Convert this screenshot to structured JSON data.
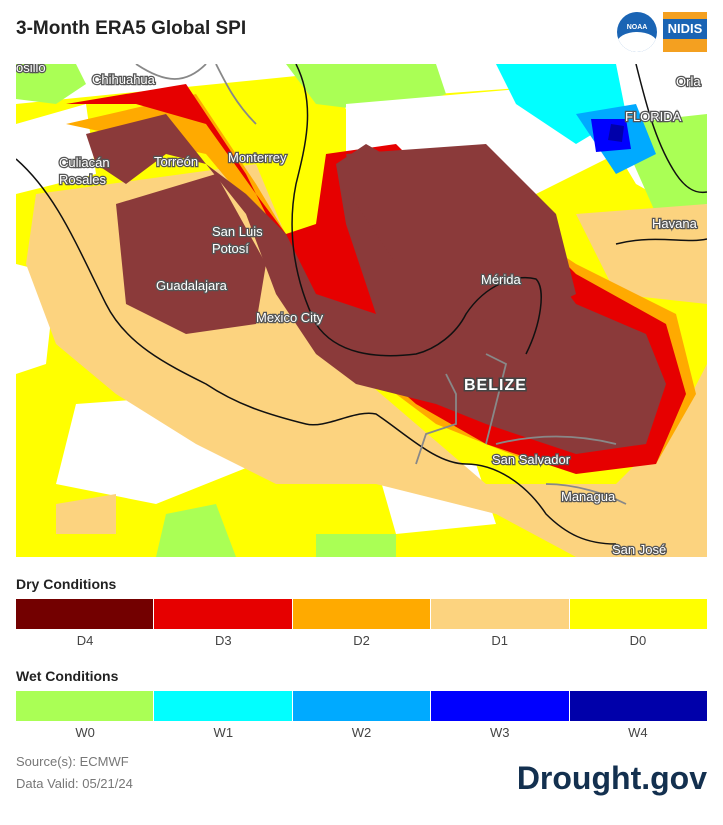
{
  "header": {
    "title": "3-Month ERA5 Global SPI",
    "noaa_logo_text": "NOAA",
    "nidis_logo_text": "NIDIS"
  },
  "map": {
    "cities": [
      {
        "id": "hermosillo",
        "label": "osillo"
      },
      {
        "id": "chihuahua",
        "label": "Chihuahua"
      },
      {
        "id": "culiacan",
        "label": "Culiacán"
      },
      {
        "id": "rosales",
        "label": "Rosales"
      },
      {
        "id": "torreon",
        "label": "Torreón"
      },
      {
        "id": "monterrey",
        "label": "Monterrey"
      },
      {
        "id": "san-luis-1",
        "label": "San Luis"
      },
      {
        "id": "san-luis-2",
        "label": "Potosí"
      },
      {
        "id": "guadalajara",
        "label": "Guadalajara"
      },
      {
        "id": "mexico-city",
        "label": "Mexico City"
      },
      {
        "id": "merida",
        "label": "Mérida"
      },
      {
        "id": "san-salvador",
        "label": "San Salvador"
      },
      {
        "id": "managua",
        "label": "Managua"
      },
      {
        "id": "san-jose",
        "label": "San José"
      },
      {
        "id": "havana",
        "label": "Havana"
      },
      {
        "id": "orlando",
        "label": "Orla"
      },
      {
        "id": "florida",
        "label": "FLORIDA"
      }
    ],
    "country_label": "BELIZE"
  },
  "legend": {
    "dry_title": "Dry Conditions",
    "wet_title": "Wet Conditions",
    "dry": [
      {
        "label": "D4",
        "color": "#730000"
      },
      {
        "label": "D3",
        "color": "#e60000"
      },
      {
        "label": "D2",
        "color": "#ffaa00"
      },
      {
        "label": "D1",
        "color": "#fcd37f"
      },
      {
        "label": "D0",
        "color": "#ffff00"
      }
    ],
    "wet": [
      {
        "label": "W0",
        "color": "#aaff55"
      },
      {
        "label": "W1",
        "color": "#01ffff"
      },
      {
        "label": "W2",
        "color": "#00aaff"
      },
      {
        "label": "W3",
        "color": "#0000ff"
      },
      {
        "label": "W4",
        "color": "#0000aa"
      }
    ]
  },
  "footer": {
    "source": "Source(s): ECMWF",
    "valid": "Data Valid: 05/21/24",
    "brand": "Drought.gov"
  }
}
